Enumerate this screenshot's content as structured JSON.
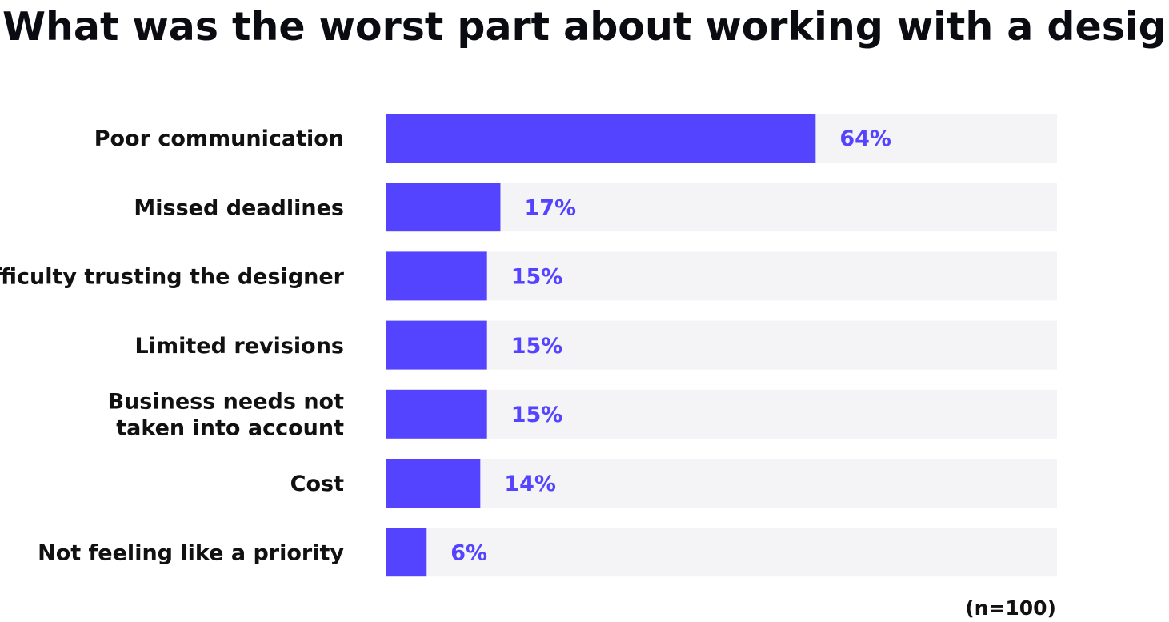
{
  "colors": {
    "bar": "#5544ff",
    "track": "#f4f4f6",
    "value_text": "#5544ff",
    "text": "#111111"
  },
  "chart_data": {
    "type": "bar",
    "orientation": "horizontal",
    "title": "What was the worst part about working with a designer?",
    "categories": [
      [
        "Poor communication"
      ],
      [
        "Missed deadlines"
      ],
      [
        "Difficulty trusting the designer"
      ],
      [
        "Limited revisions"
      ],
      [
        "Business needs not",
        "taken into account"
      ],
      [
        "Cost"
      ],
      [
        "Not feeling like a priority"
      ]
    ],
    "values": [
      64,
      17,
      15,
      15,
      15,
      14,
      6
    ],
    "value_labels": [
      "64%",
      "17%",
      "15%",
      "15%",
      "15%",
      "14%",
      "6%"
    ],
    "xlim": [
      0,
      100
    ],
    "unit": "%",
    "grid": false,
    "legend": "none",
    "note": "(n=100)"
  }
}
